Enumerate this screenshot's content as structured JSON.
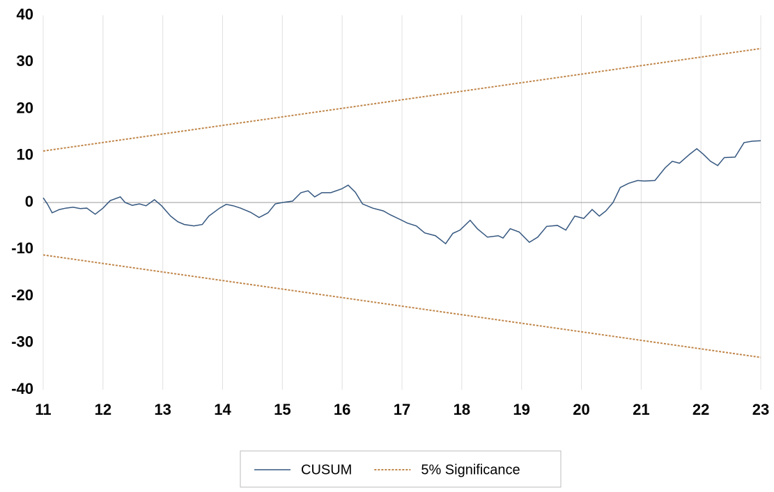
{
  "chart_data": {
    "type": "line",
    "x": [
      11.0,
      11.07,
      11.15,
      11.27,
      11.38,
      11.5,
      11.62,
      11.73,
      11.87,
      12.0,
      12.12,
      12.29,
      12.37,
      12.49,
      12.61,
      12.72,
      12.86,
      12.98,
      13.13,
      13.25,
      13.36,
      13.52,
      13.66,
      13.77,
      13.95,
      14.06,
      14.18,
      14.3,
      14.47,
      14.61,
      14.76,
      14.88,
      15.0,
      15.17,
      15.31,
      15.43,
      15.54,
      15.66,
      15.81,
      15.99,
      16.1,
      16.22,
      16.34,
      16.51,
      16.69,
      16.8,
      16.98,
      17.09,
      17.24,
      17.38,
      17.56,
      17.73,
      17.85,
      17.97,
      18.14,
      18.26,
      18.43,
      18.61,
      18.69,
      18.81,
      18.96,
      19.13,
      19.27,
      19.42,
      19.6,
      19.74,
      19.89,
      20.04,
      20.18,
      20.3,
      20.41,
      20.53,
      20.65,
      20.79,
      20.94,
      21.05,
      21.23,
      21.4,
      21.52,
      21.64,
      21.81,
      21.93,
      22.04,
      22.16,
      22.28,
      22.39,
      22.57,
      22.72,
      22.86,
      23.0
    ],
    "series": [
      {
        "name": "CUSUM",
        "color": "#34567f",
        "dashed": false,
        "values": [
          1.0,
          -0.3,
          -2.2,
          -1.5,
          -1.2,
          -1.0,
          -1.3,
          -1.2,
          -2.5,
          -1.2,
          0.4,
          1.2,
          0,
          -0.6,
          -0.3,
          -0.7,
          0.6,
          -0.7,
          -2.9,
          -4.1,
          -4.7,
          -5.0,
          -4.7,
          -2.9,
          -1.2,
          -0.4,
          -0.7,
          -1.2,
          -2.1,
          -3.2,
          -2.2,
          -0.3,
          0,
          0.3,
          2.1,
          2.5,
          1.2,
          2.1,
          2.1,
          2.9,
          3.7,
          2.2,
          -0.3,
          -1.2,
          -1.8,
          -2.6,
          -3.7,
          -4.4,
          -5.0,
          -6.5,
          -7.1,
          -8.8,
          -6.6,
          -5.9,
          -3.8,
          -5.6,
          -7.4,
          -7.1,
          -7.6,
          -5.6,
          -6.3,
          -8.5,
          -7.4,
          -5.1,
          -4.9,
          -5.9,
          -2.9,
          -3.4,
          -1.5,
          -2.9,
          -1.8,
          0,
          3.2,
          4.1,
          4.7,
          4.6,
          4.7,
          7.4,
          8.8,
          8.4,
          10.3,
          11.5,
          10.3,
          8.8,
          7.9,
          9.6,
          9.7,
          12.8,
          13.1,
          13.2
        ]
      },
      {
        "name": "5% Significance",
        "color": "#c0864a",
        "dashed": true,
        "x": [
          11,
          23
        ],
        "values": [
          11.0,
          32.9
        ],
        "values_lower": [
          -11.2,
          -33.1
        ]
      }
    ],
    "xlim": [
      11,
      23
    ],
    "xticks": [
      11,
      12,
      13,
      14,
      15,
      16,
      17,
      18,
      19,
      20,
      21,
      22,
      23
    ],
    "ylim": [
      -40,
      40
    ],
    "yticks": [
      -40,
      -30,
      -20,
      -10,
      0,
      10,
      20,
      30,
      40
    ],
    "grid": "x"
  }
}
